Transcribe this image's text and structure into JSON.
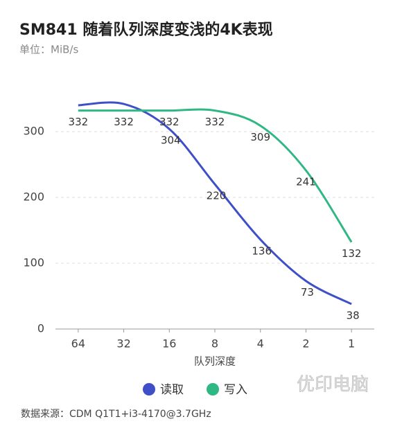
{
  "chart_data": {
    "type": "line",
    "title": "SM841 随着队列深度变浅的4K表现",
    "subtitle": "单位：MiB/s",
    "x_label": "队列深度",
    "categories": [
      "64",
      "32",
      "16",
      "8",
      "4",
      "2",
      "1"
    ],
    "series": [
      {
        "name": "读取",
        "color": "#3f4fc8",
        "values": [
          340,
          342,
          304,
          220,
          136,
          73,
          38
        ],
        "value_labels": [
          null,
          null,
          "304",
          "220",
          "136",
          "73",
          "38"
        ]
      },
      {
        "name": "写入",
        "color": "#2fb784",
        "values": [
          332,
          332,
          332,
          332,
          309,
          241,
          132
        ],
        "value_labels": [
          "332",
          "332",
          "332",
          "332",
          "309",
          "241",
          "132"
        ]
      }
    ],
    "ylim": [
      0,
      360
    ],
    "yticks": [
      0,
      100,
      200,
      300
    ],
    "grid": true,
    "legend": "bottom",
    "source": "数据来源：CDM Q1T1+i3-4170@3.7GHz",
    "watermark": "优印电脑"
  }
}
